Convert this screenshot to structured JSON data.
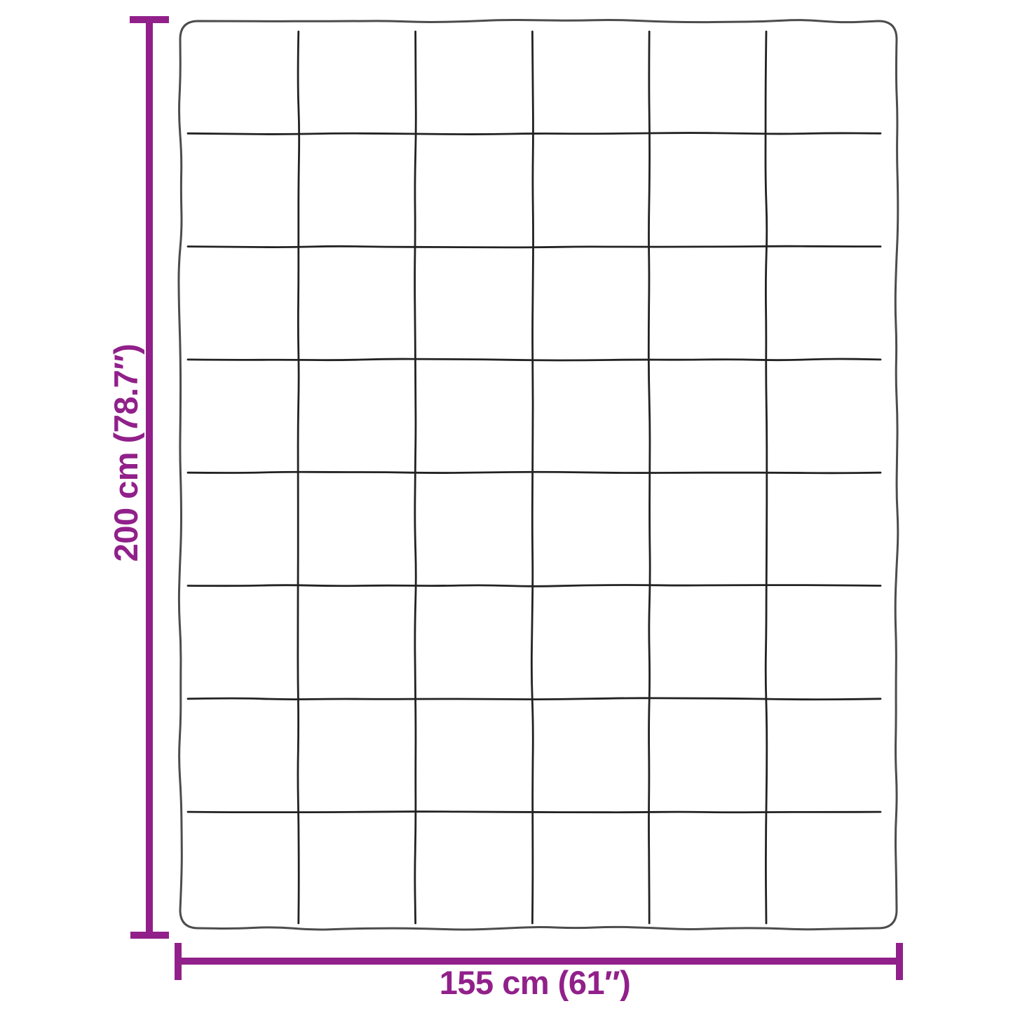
{
  "diagram": {
    "type": "product-dimension-diagram",
    "subject": "quilted-blanket-top-view",
    "height_label": "200 cm (78.7″)",
    "width_label": "155 cm (61″)",
    "quilt_grid": {
      "columns": 6,
      "rows": 8
    },
    "colors": {
      "dimension_accent": "#91208a",
      "blanket_outline": "#4c4c4c",
      "grid_line": "#222222",
      "background": "#ffffff"
    }
  }
}
